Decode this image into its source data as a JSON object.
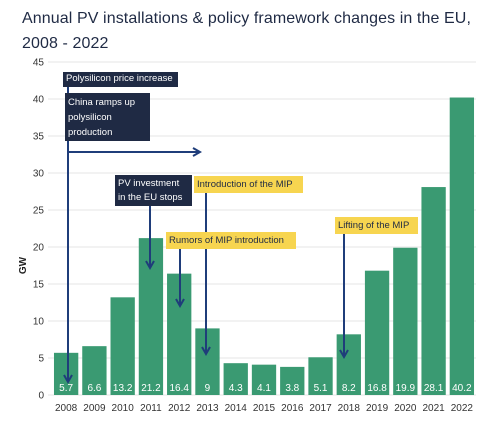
{
  "chart_data": {
    "type": "bar",
    "title": "Annual PV installations & policy framework changes in the EU,\n2008 - 2022",
    "ylabel": "GW",
    "ylim": [
      0,
      45
    ],
    "yticks": [
      0,
      5,
      10,
      15,
      20,
      25,
      30,
      35,
      40,
      45
    ],
    "categories": [
      "2008",
      "2009",
      "2010",
      "2011",
      "2012",
      "2013",
      "2014",
      "2015",
      "2016",
      "2017",
      "2018",
      "2019",
      "2020",
      "2021",
      "2022"
    ],
    "values": [
      5.7,
      6.6,
      13.2,
      21.2,
      16.4,
      9,
      4.3,
      4.1,
      3.8,
      5.1,
      8.2,
      16.8,
      19.9,
      28.1,
      40.2
    ],
    "value_labels": [
      "5.7",
      "6.6",
      "13.2",
      "21.2",
      "16.4",
      "9",
      "4.3",
      "4.1",
      "3.8",
      "5.1",
      "8.2",
      "16.8",
      "19.9",
      "28.1",
      "40.2"
    ],
    "bar_color": "#3a9a72",
    "grid": true,
    "annotations": [
      {
        "lines": [
          "Polysilicon price increase"
        ],
        "style": "dark",
        "category": "2008"
      },
      {
        "lines": [
          "China ramps up",
          "polysilicon",
          "production"
        ],
        "style": "dark",
        "category": "2008"
      },
      {
        "lines": [
          "PV investment",
          "in the EU stops"
        ],
        "style": "dark",
        "category": "2011"
      },
      {
        "lines": [
          "Introduction of the MIP"
        ],
        "style": "yellow",
        "category": "2013"
      },
      {
        "lines": [
          "Rumors of MIP introduction"
        ],
        "style": "yellow",
        "category": "2012"
      },
      {
        "lines": [
          "Lifting of the MIP"
        ],
        "style": "yellow",
        "category": "2018"
      }
    ],
    "colors": {
      "dark_box": "#1f2a44",
      "yellow_box": "#f7d550",
      "arrow": "#1f3d7a",
      "grid": "#e6e6e6"
    }
  }
}
